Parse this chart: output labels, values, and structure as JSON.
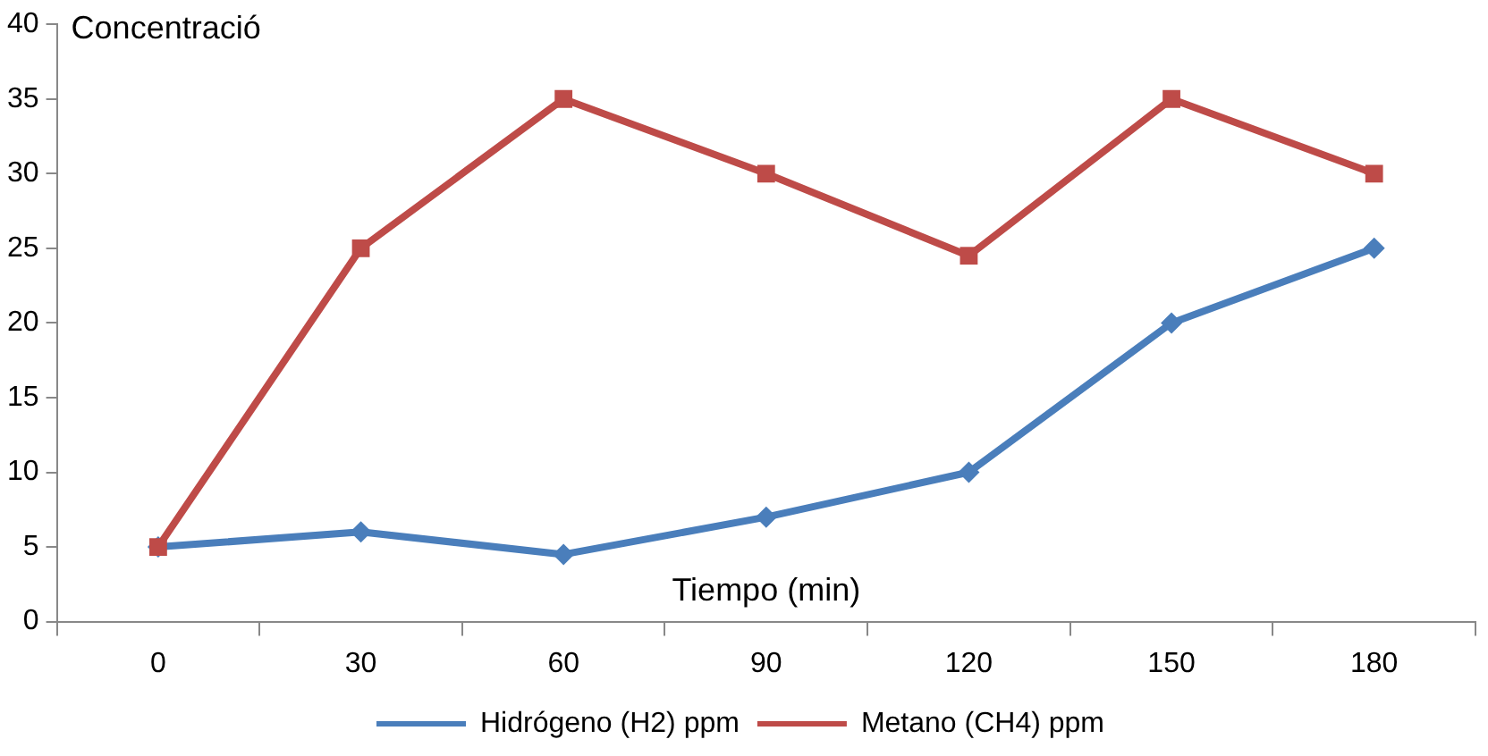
{
  "chart_data": {
    "type": "line",
    "xlabel": "Tiempo (min)",
    "ylabel": "Concentració",
    "categories": [
      "0",
      "30",
      "60",
      "90",
      "120",
      "150",
      "180"
    ],
    "series": [
      {
        "name": "Hidrógeno (H2) ppm",
        "color": "#4a7ebb",
        "marker": "diamond",
        "values": [
          5,
          6,
          4.5,
          7,
          10,
          20,
          25
        ]
      },
      {
        "name": "Metano (CH4) ppm",
        "color": "#be4b48",
        "marker": "square",
        "values": [
          5,
          25,
          35,
          30,
          24.5,
          35,
          30
        ]
      }
    ],
    "ylim": [
      0,
      40
    ],
    "yticks": [
      0,
      5,
      10,
      15,
      20,
      25,
      30,
      35,
      40
    ],
    "grid": false,
    "legend": "bottom"
  }
}
